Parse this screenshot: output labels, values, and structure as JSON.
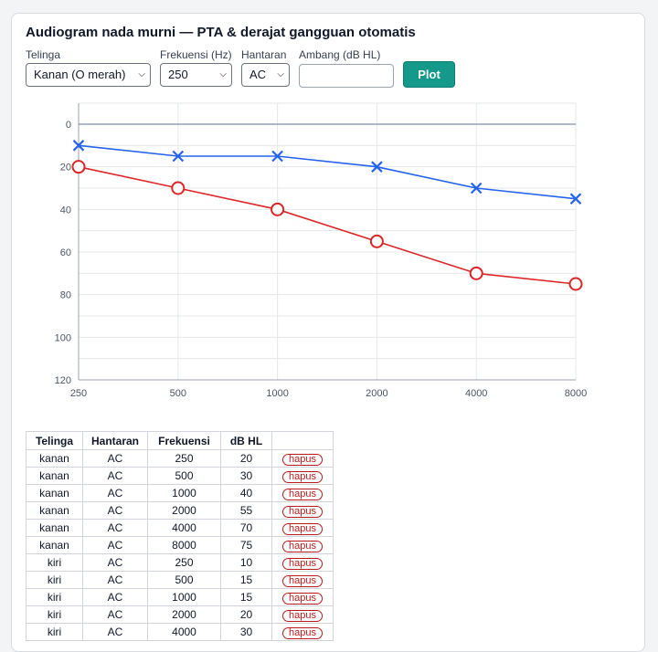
{
  "app": {
    "title": "Audiogram nada murni — PTA & derajat gangguan otomatis"
  },
  "controls": {
    "ear_label": "Telinga",
    "ear_value": "Kanan (O merah)",
    "freq_label": "Frekuensi (Hz)",
    "freq_value": "250",
    "cond_label": "Hantaran",
    "cond_value": "AC",
    "threshold_label": "Ambang (dB HL)",
    "threshold_value": "",
    "plot_label": "Plot"
  },
  "colors": {
    "right_ear": "#dc2626",
    "left_ear": "#2563eb",
    "button": "#14998a"
  },
  "chart_data": {
    "type": "line",
    "x": [
      250,
      500,
      1000,
      2000,
      4000,
      8000
    ],
    "x_tick_labels": [
      "250",
      "500",
      "1000",
      "2000",
      "4000",
      "8000"
    ],
    "y_tick_labels": [
      "0",
      "20",
      "40",
      "60",
      "80",
      "100",
      "120"
    ],
    "ylim": [
      120,
      0
    ],
    "y_inverted": true,
    "x_scale": "log",
    "grid": true,
    "series": [
      {
        "ear": "kanan",
        "marker": "circle",
        "color": "#dc2626",
        "values": [
          20,
          30,
          40,
          55,
          70,
          75
        ]
      },
      {
        "ear": "kiri",
        "marker": "cross",
        "color": "#2563eb",
        "values": [
          10,
          15,
          15,
          20,
          30,
          35
        ]
      }
    ]
  },
  "table": {
    "headers": [
      "Telinga",
      "Hantaran",
      "Frekuensi",
      "dB HL",
      ""
    ],
    "delete_label": "hapus",
    "rows": [
      {
        "ear": "kanan",
        "cond": "AC",
        "freq": "250",
        "db": "20"
      },
      {
        "ear": "kanan",
        "cond": "AC",
        "freq": "500",
        "db": "30"
      },
      {
        "ear": "kanan",
        "cond": "AC",
        "freq": "1000",
        "db": "40"
      },
      {
        "ear": "kanan",
        "cond": "AC",
        "freq": "2000",
        "db": "55"
      },
      {
        "ear": "kanan",
        "cond": "AC",
        "freq": "4000",
        "db": "70"
      },
      {
        "ear": "kanan",
        "cond": "AC",
        "freq": "8000",
        "db": "75"
      },
      {
        "ear": "kiri",
        "cond": "AC",
        "freq": "250",
        "db": "10"
      },
      {
        "ear": "kiri",
        "cond": "AC",
        "freq": "500",
        "db": "15"
      },
      {
        "ear": "kiri",
        "cond": "AC",
        "freq": "1000",
        "db": "15"
      },
      {
        "ear": "kiri",
        "cond": "AC",
        "freq": "2000",
        "db": "20"
      },
      {
        "ear": "kiri",
        "cond": "AC",
        "freq": "4000",
        "db": "30"
      }
    ]
  }
}
